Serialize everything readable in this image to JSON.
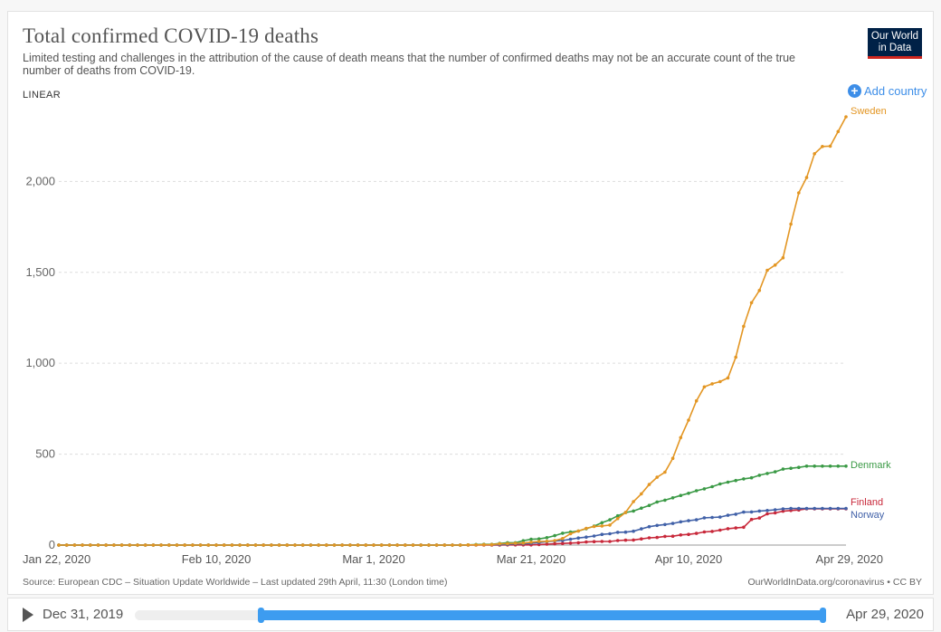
{
  "header": {
    "title": "Total confirmed COVID-19 deaths",
    "subtitle": "Limited testing and challenges in the attribution of the cause of death means that the number of confirmed deaths may not be an accurate count of the true number of deaths from COVID-19.",
    "logo_line1": "Our World",
    "logo_line2": "in Data",
    "scale_label": "LINEAR",
    "add_country_label": "Add country"
  },
  "footer": {
    "source": "Source: European CDC – Situation Update Worldwide – Last updated 29th April, 11:30 (London time)",
    "license": "OurWorldInData.org/coronavirus • CC BY"
  },
  "timeline": {
    "start_label": "Dec 31, 2019",
    "end_label": "Apr 29, 2020"
  },
  "colors": {
    "Sweden": "#e39623",
    "Denmark": "#3b9a46",
    "Finland": "#c8283a",
    "Norway": "#4161a8",
    "accent": "#3d8ee8"
  },
  "chart_data": {
    "type": "line",
    "title": "Total confirmed COVID-19 deaths",
    "x_start": "Jan 22, 2020",
    "x_end": "Apr 29, 2020",
    "x_tick_labels": [
      "Jan 22, 2020",
      "Feb 10, 2020",
      "Mar 1, 2020",
      "Mar 21, 2020",
      "Apr 10, 2020",
      "Apr 29, 2020"
    ],
    "y_ticks": [
      0,
      500,
      1000,
      1500,
      2000
    ],
    "y_tick_labels": [
      "0",
      "500",
      "1,000",
      "1,500",
      "2,000"
    ],
    "ylim": [
      0,
      2400
    ],
    "grid": true,
    "legend_placement": "line-end labels",
    "series": [
      {
        "name": "Sweden",
        "values": [
          0,
          0,
          0,
          0,
          0,
          0,
          0,
          0,
          0,
          0,
          0,
          0,
          0,
          0,
          0,
          0,
          0,
          0,
          0,
          0,
          0,
          0,
          0,
          0,
          0,
          0,
          0,
          0,
          0,
          0,
          0,
          0,
          0,
          0,
          0,
          0,
          0,
          0,
          0,
          0,
          0,
          0,
          0,
          0,
          0,
          0,
          0,
          0,
          0,
          0,
          0,
          0,
          1,
          1,
          2,
          3,
          7,
          8,
          10,
          11,
          16,
          20,
          21,
          25,
          36,
          62,
          77,
          92,
          102,
          105,
          110,
          146,
          180,
          239,
          282,
          333,
          373,
          401,
          477,
          591,
          687,
          793,
          870,
          887,
          899,
          919,
          1033,
          1203,
          1333,
          1400,
          1511,
          1540,
          1580,
          1765,
          1937,
          2021,
          2152,
          2192,
          2194,
          2274,
          2355
        ]
      },
      {
        "name": "Denmark",
        "values": [
          0,
          0,
          0,
          0,
          0,
          0,
          0,
          0,
          0,
          0,
          0,
          0,
          0,
          0,
          0,
          0,
          0,
          0,
          0,
          0,
          0,
          0,
          0,
          0,
          0,
          0,
          0,
          0,
          0,
          0,
          0,
          0,
          0,
          0,
          0,
          0,
          0,
          0,
          0,
          0,
          0,
          0,
          0,
          0,
          0,
          0,
          0,
          0,
          0,
          0,
          0,
          0,
          1,
          3,
          4,
          4,
          9,
          13,
          13,
          24,
          32,
          34,
          41,
          52,
          65,
          72,
          77,
          90,
          104,
          123,
          139,
          161,
          179,
          187,
          203,
          218,
          237,
          247,
          260,
          273,
          285,
          299,
          309,
          321,
          336,
          346,
          355,
          364,
          370,
          384,
          394,
          403,
          418,
          422,
          427,
          434,
          434,
          434,
          434,
          434,
          434
        ]
      },
      {
        "name": "Finland",
        "values": [
          0,
          0,
          0,
          0,
          0,
          0,
          0,
          0,
          0,
          0,
          0,
          0,
          0,
          0,
          0,
          0,
          0,
          0,
          0,
          0,
          0,
          0,
          0,
          0,
          0,
          0,
          0,
          0,
          0,
          0,
          0,
          0,
          0,
          0,
          0,
          0,
          0,
          0,
          0,
          0,
          0,
          0,
          0,
          0,
          0,
          0,
          0,
          0,
          0,
          0,
          0,
          0,
          0,
          0,
          0,
          0,
          0,
          1,
          1,
          1,
          1,
          3,
          5,
          7,
          9,
          11,
          13,
          17,
          19,
          20,
          20,
          25,
          27,
          28,
          34,
          40,
          42,
          48,
          49,
          56,
          59,
          64,
          72,
          75,
          82,
          90,
          94,
          98,
          141,
          149,
          172,
          177,
          186,
          190,
          193,
          199,
          199,
          199,
          199,
          199,
          199
        ]
      },
      {
        "name": "Norway",
        "values": [
          0,
          0,
          0,
          0,
          0,
          0,
          0,
          0,
          0,
          0,
          0,
          0,
          0,
          0,
          0,
          0,
          0,
          0,
          0,
          0,
          0,
          0,
          0,
          0,
          0,
          0,
          0,
          0,
          0,
          0,
          0,
          0,
          0,
          0,
          0,
          0,
          0,
          0,
          0,
          0,
          0,
          0,
          0,
          0,
          0,
          0,
          0,
          0,
          0,
          0,
          0,
          0,
          1,
          1,
          3,
          3,
          3,
          4,
          7,
          7,
          10,
          14,
          19,
          23,
          25,
          32,
          39,
          44,
          50,
          59,
          62,
          70,
          71,
          76,
          89,
          101,
          108,
          113,
          119,
          128,
          134,
          139,
          150,
          152,
          154,
          164,
          170,
          181,
          182,
          187,
          190,
          194,
          199,
          201,
          201,
          201,
          201,
          201,
          201,
          201,
          201
        ]
      }
    ]
  }
}
